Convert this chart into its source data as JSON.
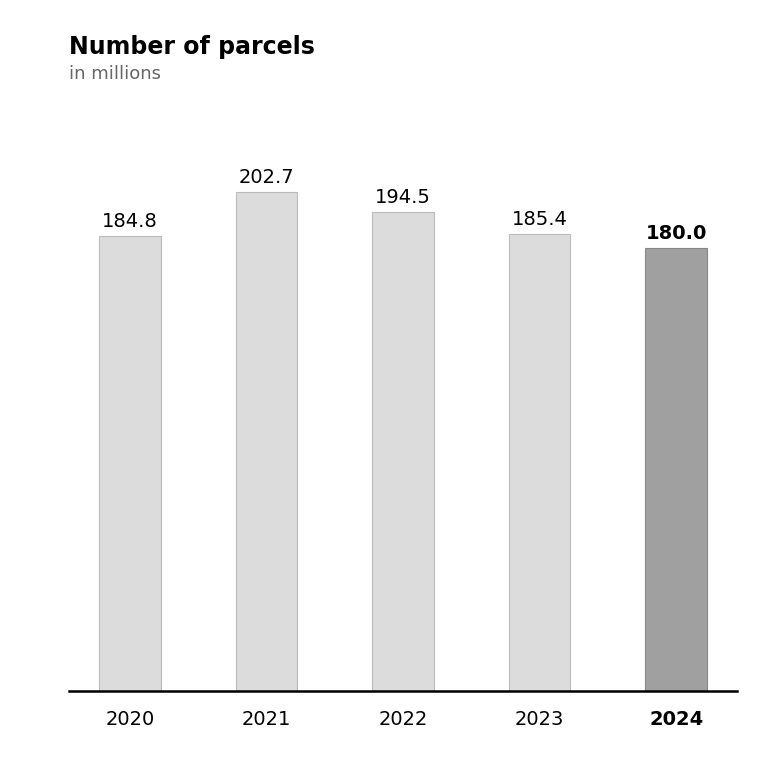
{
  "title": "Number of parcels",
  "subtitle": "in millions",
  "categories": [
    "2020",
    "2021",
    "2022",
    "2023",
    "2024"
  ],
  "values": [
    184.8,
    202.7,
    194.5,
    185.4,
    180.0
  ],
  "bar_colors": [
    "#dcdcdc",
    "#dcdcdc",
    "#dcdcdc",
    "#dcdcdc",
    "#a0a0a0"
  ],
  "bar_edge_colors": [
    "#bbbbbb",
    "#bbbbbb",
    "#bbbbbb",
    "#bbbbbb",
    "#888888"
  ],
  "label_fontweights": [
    "normal",
    "normal",
    "normal",
    "normal",
    "bold"
  ],
  "xtick_fontweights": [
    "normal",
    "normal",
    "normal",
    "normal",
    "bold"
  ],
  "background_color": "#ffffff",
  "title_fontsize": 17,
  "subtitle_fontsize": 13,
  "label_fontsize": 14,
  "xtick_fontsize": 14,
  "ylim": [
    0,
    240
  ],
  "bar_width": 0.45
}
